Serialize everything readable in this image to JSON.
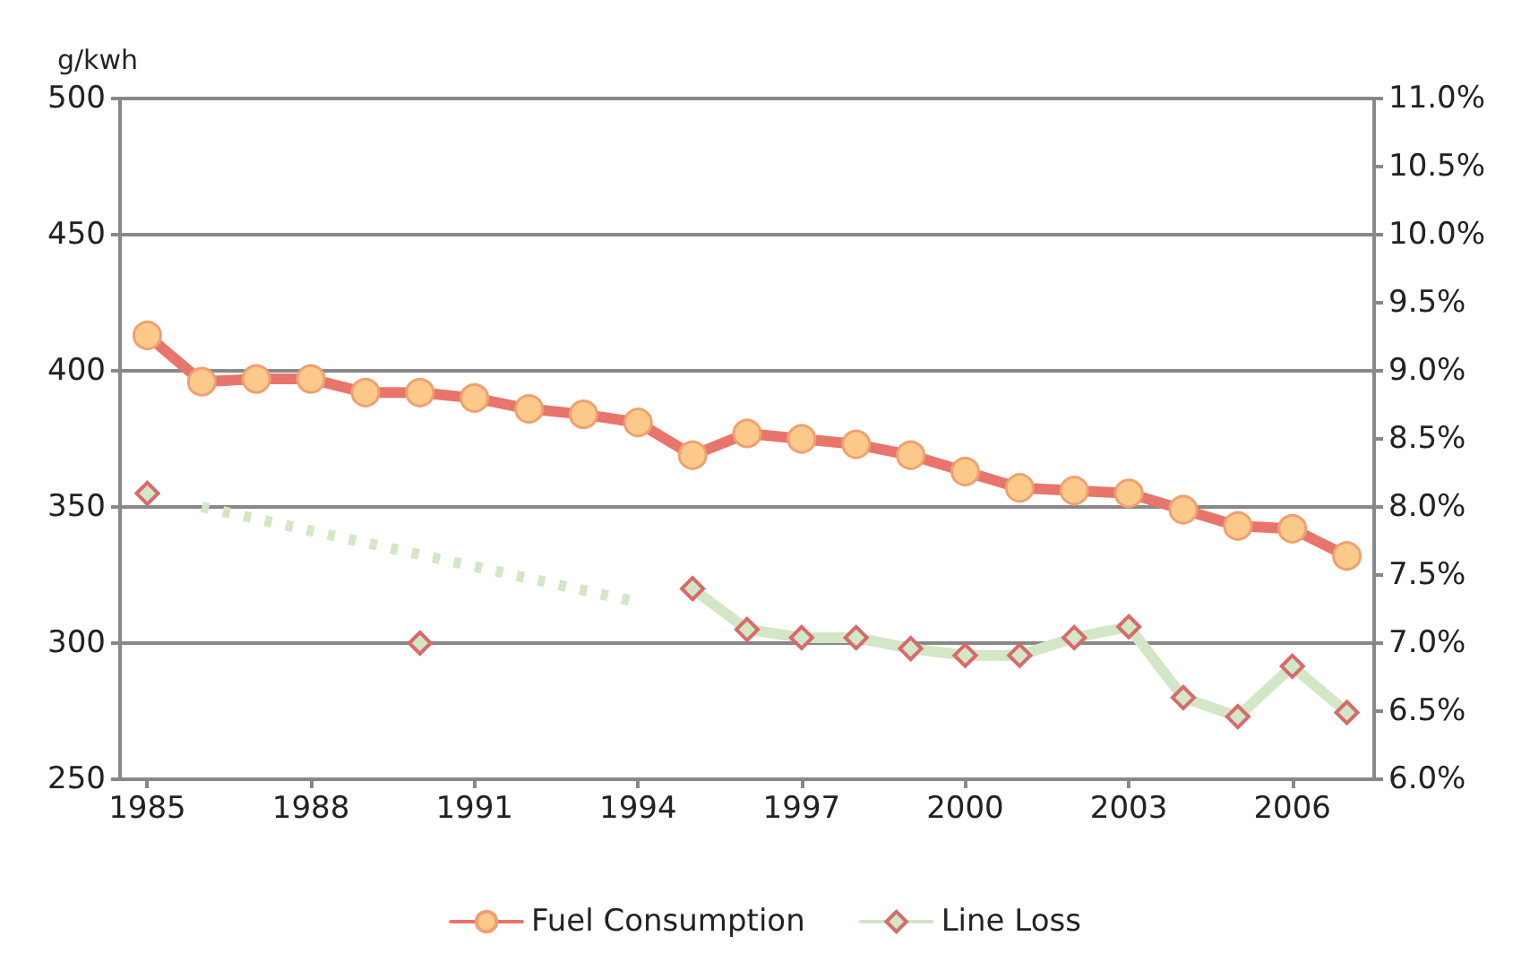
{
  "chart_data": {
    "type": "line",
    "ylabel": "g/kwh",
    "xlim": [
      1984.5,
      2007.5
    ],
    "xticks": [
      1985,
      1988,
      1991,
      1994,
      1997,
      2000,
      2003,
      2006
    ],
    "ylim": [
      250,
      500
    ],
    "yticks": [
      250,
      300,
      350,
      400,
      450,
      500
    ],
    "y2lim": [
      6.0,
      11.0
    ],
    "y2ticks": [
      {
        "value": 6.0,
        "label": "6.0%"
      },
      {
        "value": 6.5,
        "label": "6.5%"
      },
      {
        "value": 7.0,
        "label": "7.0%"
      },
      {
        "value": 7.5,
        "label": "7.5%"
      },
      {
        "value": 8.0,
        "label": "8.0%"
      },
      {
        "value": 8.5,
        "label": "8.5%"
      },
      {
        "value": 9.0,
        "label": "9.0%"
      },
      {
        "value": 9.5,
        "label": "9.5%"
      },
      {
        "value": 10.0,
        "label": "10.0%"
      },
      {
        "value": 10.5,
        "label": "10.5%"
      },
      {
        "value": 11.0,
        "label": "11.0%"
      }
    ],
    "grid": "y",
    "legend": "bottom",
    "series": [
      {
        "name": "Fuel Consumption",
        "color": "#e8756c",
        "marker": "circle",
        "line_style": "solid",
        "x": [
          1985,
          1986,
          1987,
          1988,
          1989,
          1990,
          1991,
          1992,
          1993,
          1994,
          1995,
          1996,
          1997,
          1998,
          1999,
          2000,
          2001,
          2002,
          2003,
          2004,
          2005,
          2006,
          2007
        ],
        "values": [
          413,
          396,
          397,
          397,
          392,
          392,
          390,
          386,
          384,
          381,
          369,
          377,
          375,
          373,
          369,
          363,
          357,
          356,
          355,
          349,
          343,
          342,
          332
        ]
      },
      {
        "name": "Line Loss",
        "color": "#d3e6c6",
        "marker": "diamond",
        "line_style": "solid",
        "axis": "y2",
        "x": [
          1985,
          1986,
          1987,
          1988,
          1989,
          1990,
          1991,
          1992,
          1993,
          1994,
          1995,
          1996,
          1997,
          1998,
          1999,
          2000,
          2001,
          2002,
          2003,
          2004,
          2005,
          2006,
          2007
        ],
        "values": [
          8.1,
          null,
          null,
          null,
          null,
          7.0,
          null,
          null,
          null,
          null,
          7.4,
          7.1,
          7.04,
          7.04,
          6.96,
          6.91,
          6.91,
          7.04,
          7.12,
          6.6,
          6.46,
          6.83,
          6.49
        ]
      },
      {
        "color": "#d3e6c6",
        "marker": "none",
        "line_style": "dotted",
        "axis": "y2",
        "x": [
          1986,
          1994
        ],
        "values": [
          8.0,
          7.3
        ]
      }
    ]
  }
}
